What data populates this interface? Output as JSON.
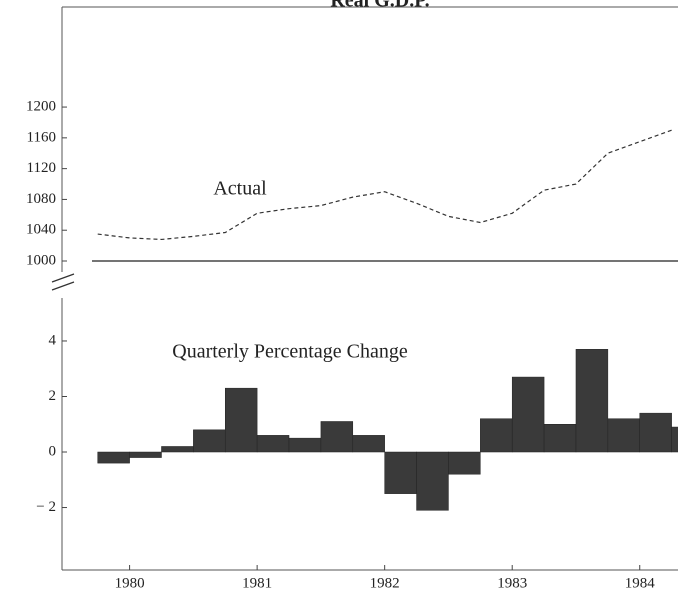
{
  "chart_data": [
    {
      "type": "line",
      "title": "Real G.D.P.",
      "annotation": "Actual",
      "x": [
        1979.75,
        1980,
        1980.25,
        1980.5,
        1980.75,
        1981,
        1981.25,
        1981.5,
        1981.75,
        1982,
        1982.25,
        1982.5,
        1982.75,
        1983,
        1983.25,
        1983.5,
        1983.75,
        1984,
        1984.25
      ],
      "values": [
        1035,
        1030,
        1028,
        1032,
        1037,
        1062,
        1068,
        1072,
        1083,
        1090,
        1075,
        1058,
        1050,
        1062,
        1092,
        1100,
        1140,
        1155,
        1170
      ],
      "color": "#333333",
      "xlim": [
        1979.47,
        1984.3
      ],
      "ylim": [
        1000,
        1330
      ],
      "yticks": [
        1000,
        1040,
        1080,
        1120,
        1160,
        1200
      ]
    },
    {
      "type": "bar",
      "annotation": "Quarterly Percentage Change",
      "x": [
        1979.75,
        1980,
        1980.25,
        1980.5,
        1980.75,
        1981,
        1981.25,
        1981.5,
        1981.75,
        1982,
        1982.25,
        1982.5,
        1982.75,
        1983,
        1983.25,
        1983.5,
        1983.75,
        1984,
        1984.25
      ],
      "values": [
        -0.4,
        -0.2,
        0.2,
        0.8,
        2.3,
        0.6,
        0.5,
        1.1,
        0.6,
        -1.5,
        -2.1,
        -0.8,
        1.2,
        2.7,
        1.0,
        3.7,
        1.2,
        1.4,
        0.9
      ],
      "color": "#3a3a3a",
      "xlim": [
        1979.47,
        1984.3
      ],
      "ylim": [
        -4.25,
        5.8
      ],
      "xticks": [
        1980,
        1981,
        1982,
        1983,
        1984
      ],
      "yticks": [
        {
          "value": -2,
          "label": "− 2"
        },
        0,
        2,
        4
      ]
    }
  ]
}
